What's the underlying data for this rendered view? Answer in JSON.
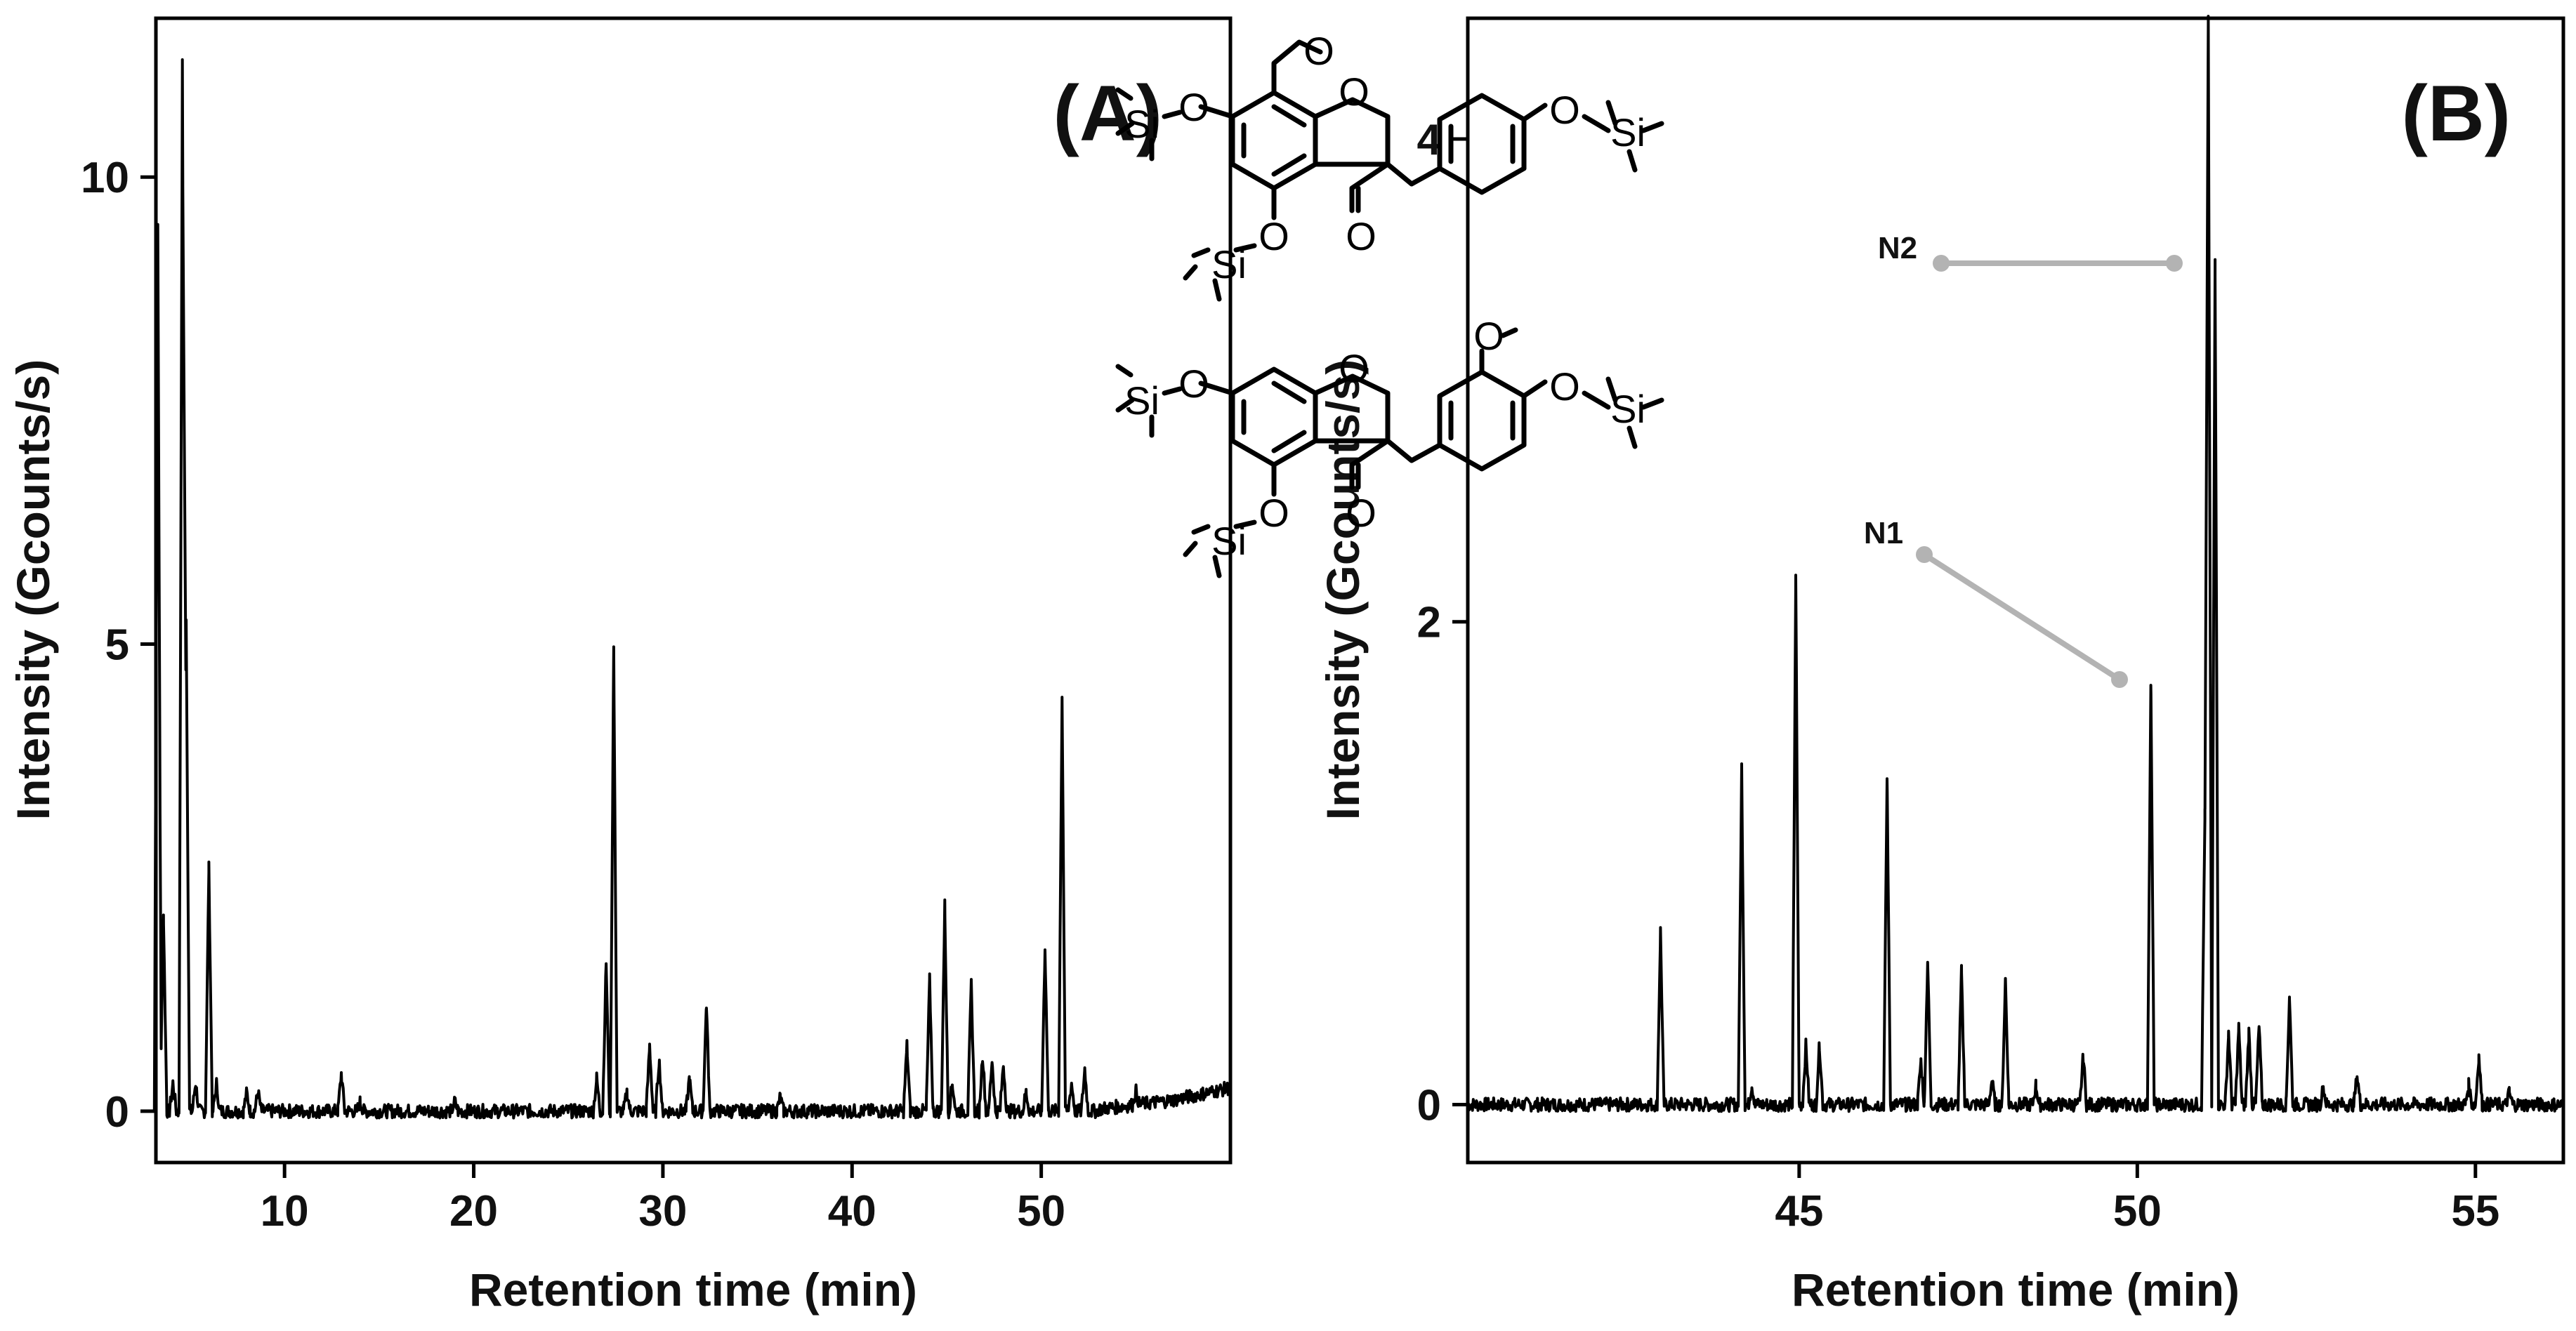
{
  "chart_data": [
    {
      "type": "line",
      "panel_label": "(A)",
      "xlabel": "Retention time (min)",
      "ylabel": "Intensity (Gcounts/s)",
      "xlim": [
        3.2,
        60
      ],
      "ylim": [
        -0.55,
        11.7
      ],
      "xticks": [
        10,
        20,
        30,
        40,
        50
      ],
      "xtick_labels": [
        "10",
        "20",
        "30",
        "40",
        "50"
      ],
      "yticks": [
        0,
        5,
        10
      ],
      "ytick_labels": [
        "0",
        "5",
        "10"
      ],
      "baseline": 0.0,
      "peaks": [
        {
          "x": 3.3,
          "y": 9.5
        },
        {
          "x": 3.6,
          "y": 2.1
        },
        {
          "x": 4.1,
          "y": 0.3
        },
        {
          "x": 4.6,
          "y": 11.2
        },
        {
          "x": 4.8,
          "y": 5.3
        },
        {
          "x": 5.3,
          "y": 0.3
        },
        {
          "x": 6.0,
          "y": 2.6
        },
        {
          "x": 6.4,
          "y": 0.3
        },
        {
          "x": 8.0,
          "y": 0.2
        },
        {
          "x": 8.6,
          "y": 0.2
        },
        {
          "x": 13.0,
          "y": 0.4
        },
        {
          "x": 14.0,
          "y": 0.1
        },
        {
          "x": 19.0,
          "y": 0.1
        },
        {
          "x": 26.5,
          "y": 0.35
        },
        {
          "x": 27.0,
          "y": 1.6
        },
        {
          "x": 27.4,
          "y": 4.95
        },
        {
          "x": 28.1,
          "y": 0.2
        },
        {
          "x": 29.3,
          "y": 0.7
        },
        {
          "x": 29.8,
          "y": 0.55
        },
        {
          "x": 31.4,
          "y": 0.35
        },
        {
          "x": 32.3,
          "y": 1.15
        },
        {
          "x": 36.2,
          "y": 0.15
        },
        {
          "x": 42.9,
          "y": 0.7
        },
        {
          "x": 44.1,
          "y": 1.4
        },
        {
          "x": 44.9,
          "y": 2.2
        },
        {
          "x": 45.3,
          "y": 0.3
        },
        {
          "x": 46.3,
          "y": 1.35
        },
        {
          "x": 46.9,
          "y": 0.6
        },
        {
          "x": 47.4,
          "y": 0.55
        },
        {
          "x": 48.0,
          "y": 0.5
        },
        {
          "x": 49.2,
          "y": 0.2
        },
        {
          "x": 50.2,
          "y": 1.75
        },
        {
          "x": 51.1,
          "y": 4.45
        },
        {
          "x": 51.6,
          "y": 0.3
        },
        {
          "x": 52.3,
          "y": 0.45
        },
        {
          "x": 55.0,
          "y": 0.15
        }
      ],
      "drift": [
        {
          "x": 53,
          "y": 0.02
        },
        {
          "x": 57,
          "y": 0.12
        },
        {
          "x": 60,
          "y": 0.25
        }
      ]
    },
    {
      "type": "line",
      "panel_label": "(B)",
      "xlabel": "Retention time (min)",
      "ylabel": "Intensity (Gcounts/s)",
      "xlim": [
        40.1,
        56.3
      ],
      "ylim": [
        -0.24,
        4.5
      ],
      "xticks": [
        45,
        50,
        55
      ],
      "xtick_labels": [
        "45",
        "50",
        "55"
      ],
      "yticks": [
        0,
        2,
        4
      ],
      "ytick_labels": [
        "0",
        "2",
        "4"
      ],
      "baseline": 0.0,
      "peaks": [
        {
          "x": 42.95,
          "y": 0.72
        },
        {
          "x": 44.15,
          "y": 1.4
        },
        {
          "x": 44.3,
          "y": 0.08
        },
        {
          "x": 44.95,
          "y": 2.2
        },
        {
          "x": 45.1,
          "y": 0.25
        },
        {
          "x": 45.3,
          "y": 0.25
        },
        {
          "x": 46.3,
          "y": 1.35
        },
        {
          "x": 46.8,
          "y": 0.18
        },
        {
          "x": 46.9,
          "y": 0.6
        },
        {
          "x": 47.4,
          "y": 0.55
        },
        {
          "x": 47.85,
          "y": 0.1
        },
        {
          "x": 48.05,
          "y": 0.52
        },
        {
          "x": 48.5,
          "y": 0.08
        },
        {
          "x": 49.2,
          "y": 0.2
        },
        {
          "x": 50.2,
          "y": 1.75
        },
        {
          "x": 51.0,
          "y": 1.2
        },
        {
          "x": 51.05,
          "y": 4.5
        },
        {
          "x": 51.15,
          "y": 3.5
        },
        {
          "x": 51.35,
          "y": 0.3
        },
        {
          "x": 51.5,
          "y": 0.32
        },
        {
          "x": 51.65,
          "y": 0.3
        },
        {
          "x": 51.8,
          "y": 0.32
        },
        {
          "x": 52.25,
          "y": 0.45
        },
        {
          "x": 52.75,
          "y": 0.07
        },
        {
          "x": 53.25,
          "y": 0.12
        },
        {
          "x": 54.9,
          "y": 0.08
        },
        {
          "x": 55.05,
          "y": 0.2
        },
        {
          "x": 55.5,
          "y": 0.05
        }
      ],
      "compounds": [
        {
          "label": "N2",
          "peak_x": 51.05,
          "note": "pointer to main peak"
        },
        {
          "label": "N1",
          "peak_x": 50.2,
          "note": "pointer to peak at 50.2 min"
        }
      ],
      "structure_atoms": [
        "Si",
        "O",
        "Si",
        "O",
        "O",
        "O",
        "O",
        "Si",
        "O",
        "Si",
        "O"
      ]
    }
  ]
}
